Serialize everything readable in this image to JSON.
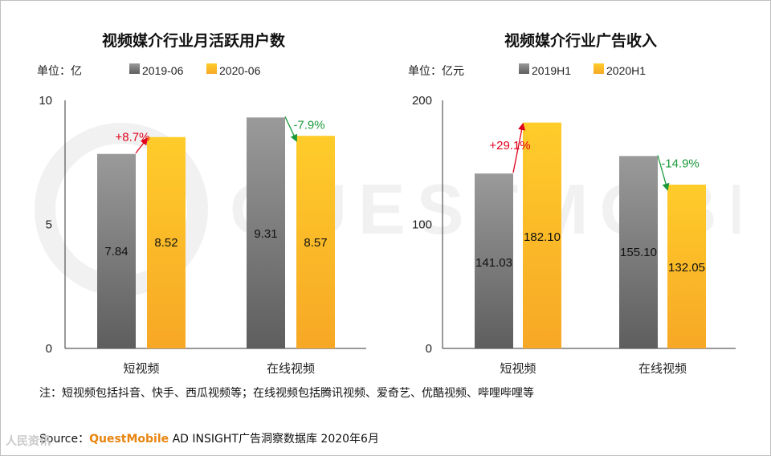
{
  "watermark_text": "QUESTMOBILE",
  "corner_logo": "人民资讯",
  "footnote": "注：短视频包括抖音、快手、西瓜视频等；在线视频包括腾讯视频、爱奇艺、优酷视频、哔哩哔哩等",
  "source": {
    "prefix": "Source：",
    "brand": "QuestMobile",
    "rest": " AD INSIGHT广告洞察数据库 2020年6月"
  },
  "colors": {
    "gray_top": "#9a9a9a",
    "gray_bottom": "#5e5e5e",
    "yellow_top": "#ffcc2a",
    "yellow_bottom": "#f7a826",
    "up": "#e0001b",
    "down": "#1a9a3a",
    "axis": "#333333"
  },
  "chart_data": [
    {
      "type": "bar",
      "title": "视频媒介行业月活跃用户数",
      "unit_label": "单位：亿",
      "categories": [
        "短视频",
        "在线视频"
      ],
      "series": [
        {
          "name": "2019-06",
          "values": [
            7.84,
            9.31
          ],
          "labels": [
            "7.84",
            "9.31"
          ]
        },
        {
          "name": "2020-06",
          "values": [
            8.52,
            8.57
          ],
          "labels": [
            "8.52",
            "8.57"
          ]
        }
      ],
      "changes": [
        {
          "text": "+8.7%",
          "direction": "up"
        },
        {
          "text": "-7.9%",
          "direction": "down"
        }
      ],
      "ylim": [
        0,
        10
      ],
      "yticks": [
        0,
        5,
        10
      ]
    },
    {
      "type": "bar",
      "title": "视频媒介行业广告收入",
      "unit_label": "单位：亿元",
      "categories": [
        "短视频",
        "在线视频"
      ],
      "series": [
        {
          "name": "2019H1",
          "values": [
            141.03,
            155.1
          ],
          "labels": [
            "141.03",
            "155.10"
          ]
        },
        {
          "name": "2020H1",
          "values": [
            182.1,
            132.05
          ],
          "labels": [
            "182.10",
            "132.05"
          ]
        }
      ],
      "changes": [
        {
          "text": "+29.1%",
          "direction": "up"
        },
        {
          "text": "-14.9%",
          "direction": "down"
        }
      ],
      "ylim": [
        0,
        200
      ],
      "yticks": [
        0,
        100,
        200
      ]
    }
  ]
}
